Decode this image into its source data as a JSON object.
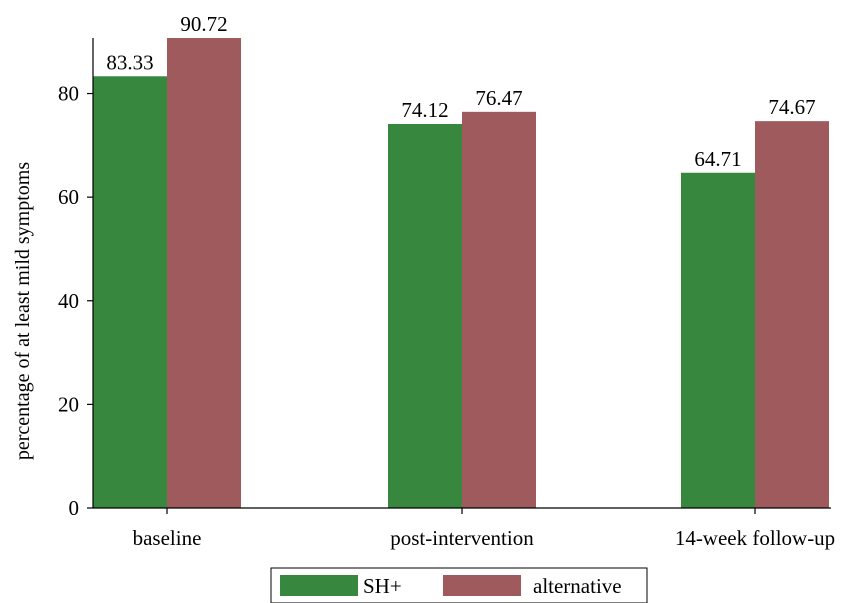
{
  "chart_data": {
    "type": "bar",
    "categories": [
      "baseline",
      "post-intervention",
      "14-week follow-up"
    ],
    "series": [
      {
        "name": "SH+",
        "values": [
          83.33,
          74.12,
          64.71
        ],
        "color": "#37873f"
      },
      {
        "name": "alternative",
        "values": [
          90.72,
          76.47,
          74.67
        ],
        "color": "#9e5a5c"
      }
    ],
    "value_labels": [
      [
        "83.33",
        "74.12",
        "64.71"
      ],
      [
        "90.72",
        "76.47",
        "74.67"
      ]
    ],
    "title": "",
    "xlabel": "",
    "ylabel": "percentage of at least mild symptoms",
    "ylim": [
      0,
      90.72
    ],
    "yticks": [
      0,
      20,
      40,
      60,
      80
    ],
    "grid": false,
    "legend_position": "bottom-center"
  }
}
